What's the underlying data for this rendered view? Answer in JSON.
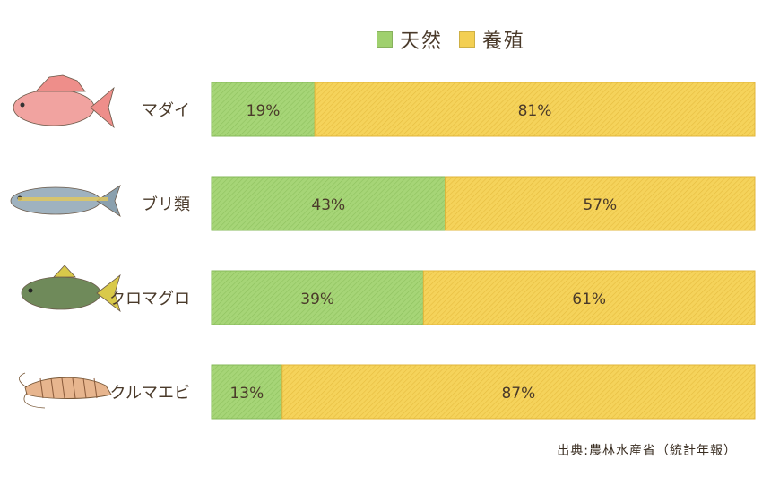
{
  "legend": {
    "wild": "天然",
    "farmed": "養殖"
  },
  "source": "出典:農林水産省（統計年報）",
  "colors": {
    "wild_fill": "#9fd06e",
    "wild_stroke": "#86b95a",
    "farmed_fill": "#f3cf52",
    "farmed_stroke": "#e1b53a",
    "text": "#4a3a2a"
  },
  "chart_data": {
    "type": "bar",
    "orientation": "horizontal",
    "stacked": true,
    "normalized_percent": true,
    "categories": [
      "マダイ",
      "ブリ類",
      "クロマグロ",
      "クルマエビ"
    ],
    "series": [
      {
        "name": "天然",
        "values": [
          19,
          43,
          39,
          13
        ]
      },
      {
        "name": "養殖",
        "values": [
          81,
          57,
          61,
          87
        ]
      }
    ],
    "value_labels": {
      "天然": [
        "19%",
        "43%",
        "39%",
        "13%"
      ],
      "養殖": [
        "81%",
        "57%",
        "61%",
        "87%"
      ]
    },
    "xlim": [
      0,
      100
    ],
    "legend_position": "top"
  },
  "icons": [
    "red-sea-bream-icon",
    "yellowtail-icon",
    "bluefin-tuna-icon",
    "kuruma-shrimp-icon"
  ]
}
